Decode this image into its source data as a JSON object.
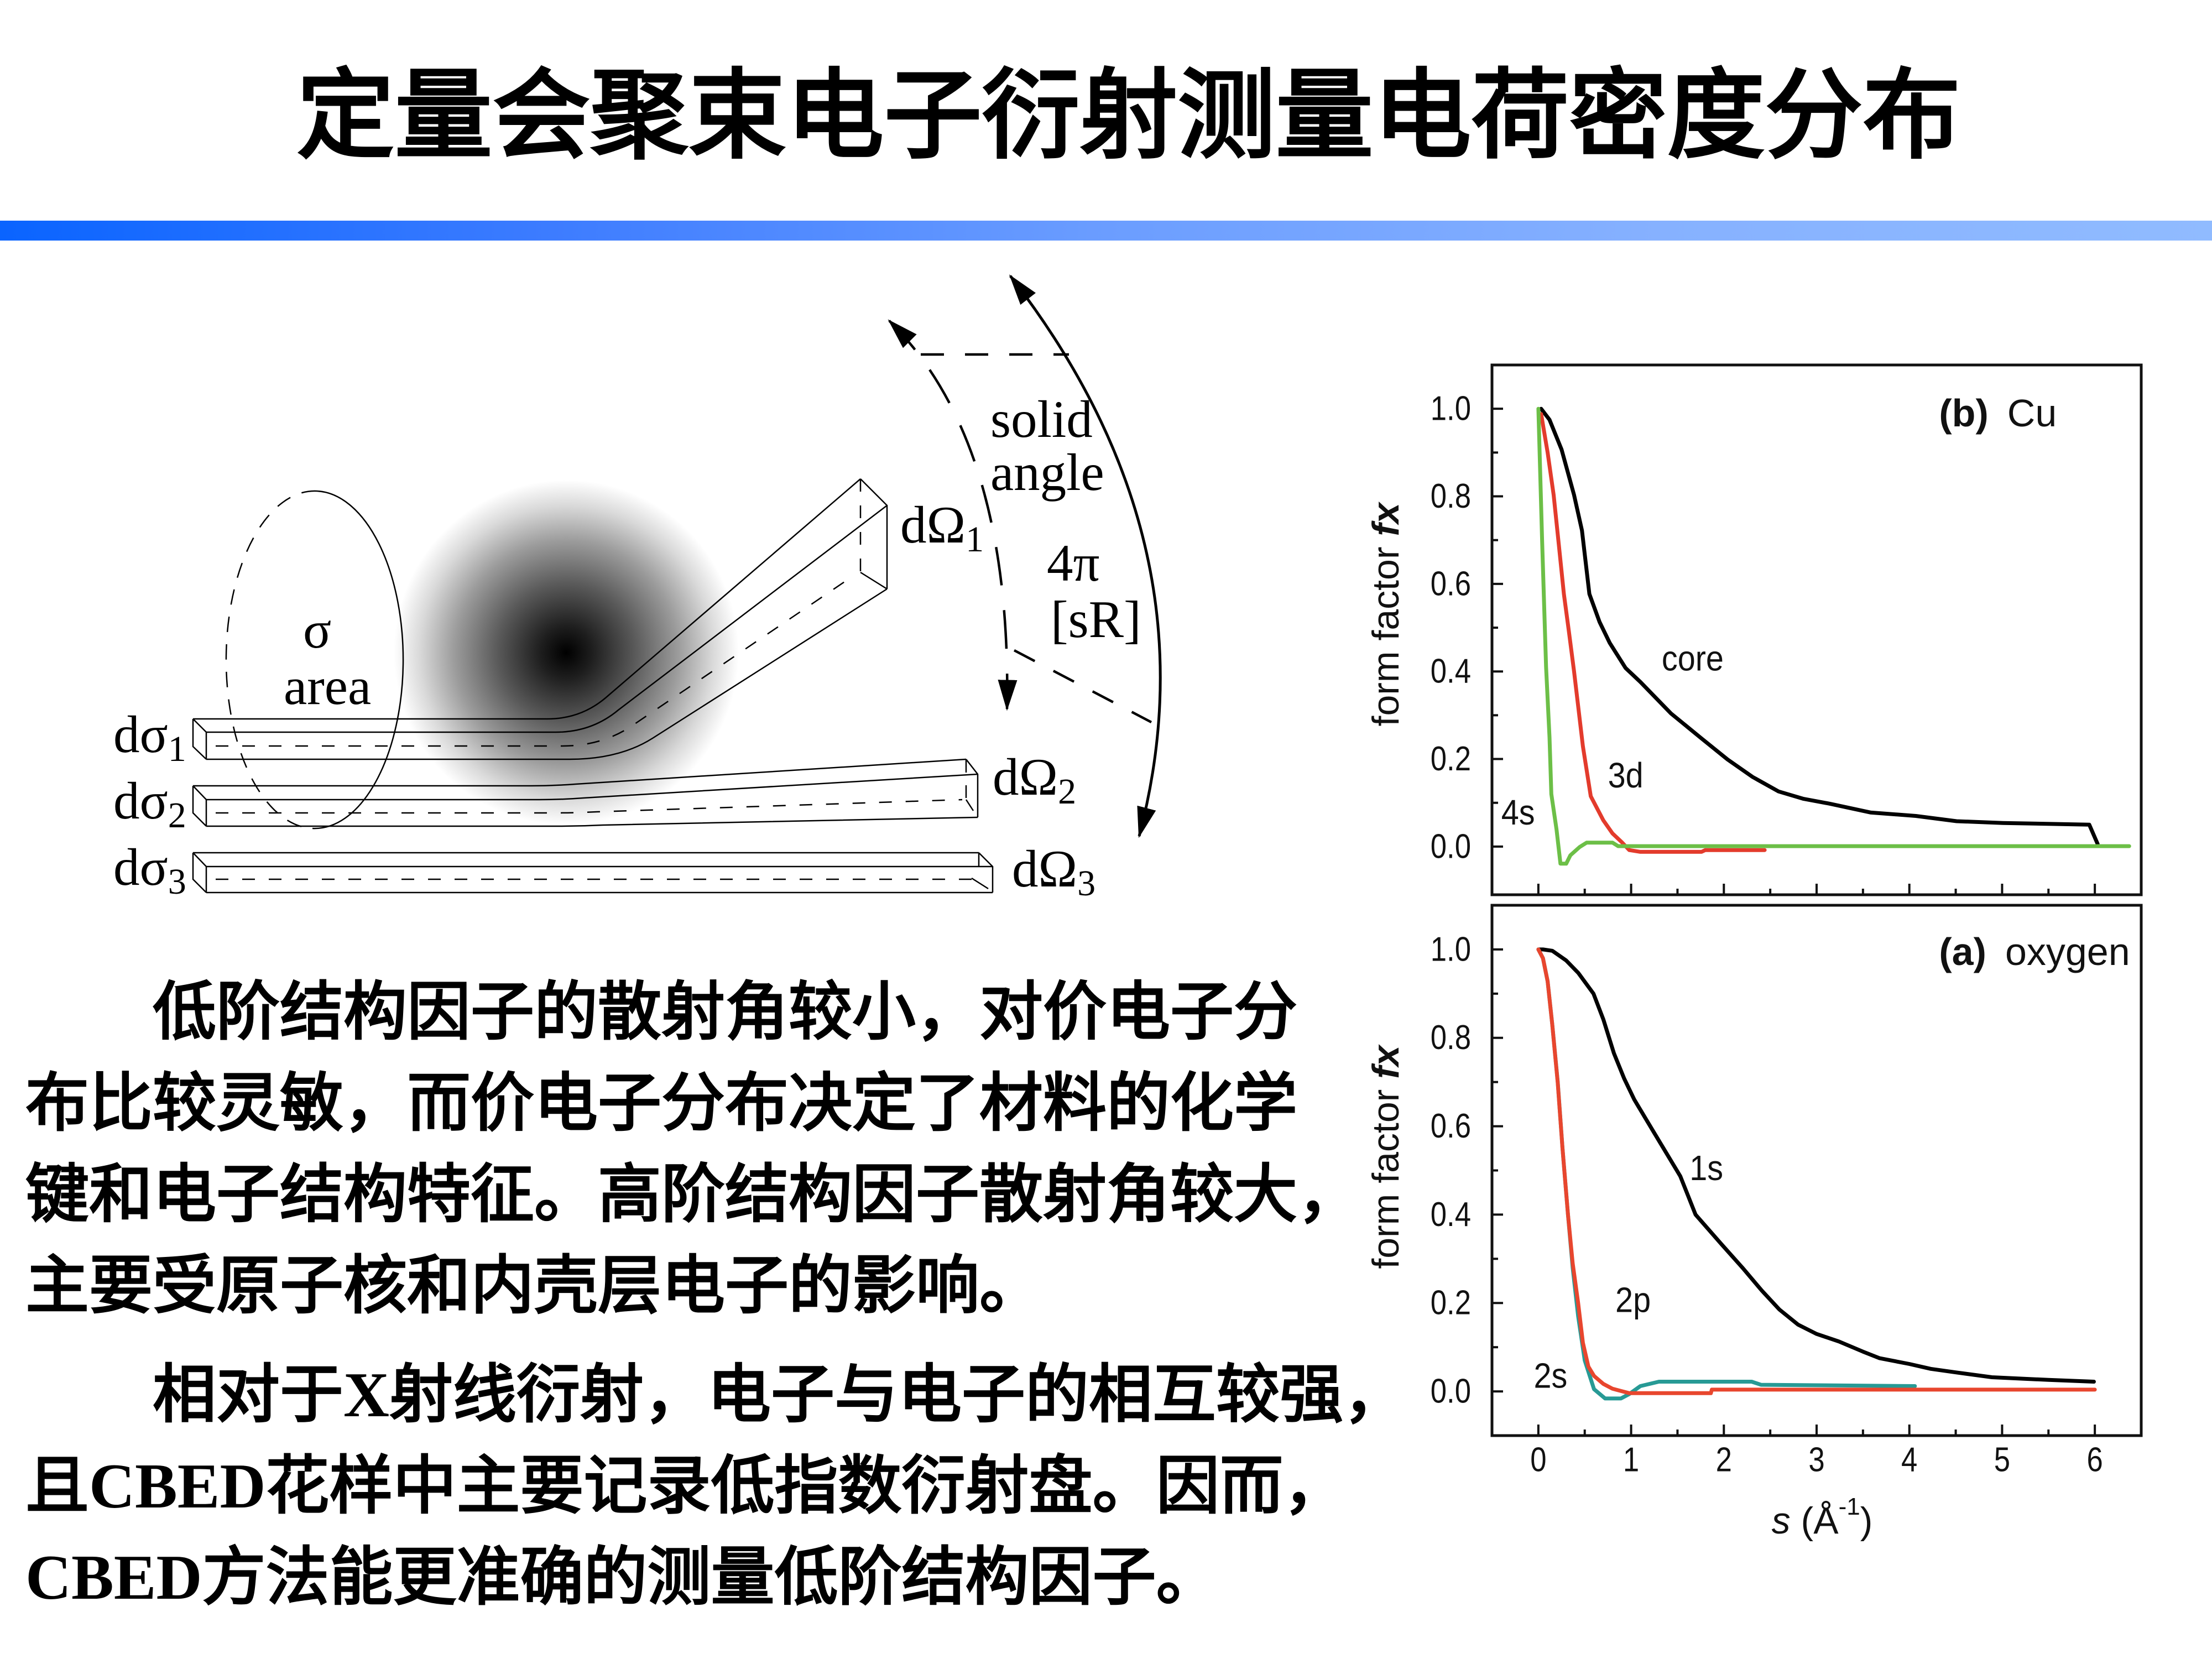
{
  "slide": {
    "title": "定量会聚束电子衍射测量电荷密度分布",
    "accent_bar": {
      "color_start": "#0a64ff",
      "color_end": "#90bbff"
    }
  },
  "diagram": {
    "sigma": "σ",
    "area": "area",
    "solid": "solid",
    "angle": "angle",
    "four_pi": "4π",
    "steradian": "[sR]",
    "incoming": [
      {
        "base": "dσ",
        "sub": "1"
      },
      {
        "base": "dσ",
        "sub": "2"
      },
      {
        "base": "dσ",
        "sub": "3"
      }
    ],
    "outgoing": [
      {
        "base": "dΩ",
        "sub": "1"
      },
      {
        "base": "dΩ",
        "sub": "2"
      },
      {
        "base": "dΩ",
        "sub": "3"
      }
    ]
  },
  "body": {
    "paragraphs": [
      {
        "lines": [
          "低阶结构因子的散射角较小，对价电子分",
          "布比较灵敏，而价电子分布决定了材料的化学",
          "键和电子结构特征。高阶结构因子散射角较大，",
          "主要受原子核和内壳层电子的影响。"
        ]
      },
      {
        "lines": [
          "相对于X射线衍射，电子与电子的相互较强，",
          "且CBED花样中主要记录低指数衍射盘。因而，",
          "CBED方法能更准确的测量低阶结构因子。"
        ]
      }
    ]
  },
  "chart_data": {
    "type": "line",
    "title": "",
    "xlabel": "s (Å-1)",
    "xlabel_parts": {
      "var": "s",
      "unit": " (Å",
      "sup": "-1",
      "close": ")"
    },
    "ylabel": "form factor fx",
    "ylabel_parts": {
      "text": "form factor ",
      "symbol": "fx"
    },
    "xticks": [
      0,
      1,
      2,
      3,
      4,
      5,
      6
    ],
    "xtick_labels": [
      "0",
      "1",
      "2",
      "3",
      "4",
      "5",
      "6"
    ],
    "x_minor_step": 0.5,
    "yticks": [
      0,
      0.2,
      0.4,
      0.6,
      0.8,
      1.0
    ],
    "ytick_labels": [
      "0.0",
      "0.2",
      "0.4",
      "0.6",
      "0.8",
      "1.0"
    ],
    "y_minor_step": 0.1,
    "grid": false,
    "legend": "none (inline curve labels)",
    "panels": [
      {
        "id": "b",
        "title_tag": "(b)",
        "title": "Cu",
        "title_pos": [
          4.32,
          0.96
        ],
        "xlim": [
          -0.5,
          6.5
        ],
        "ylim": [
          -0.11,
          1.1
        ],
        "show_xtick_labels": false,
        "series": [
          {
            "name": "core",
            "color": "#000000",
            "x": [
              0.03,
              0.12,
              0.25,
              0.385,
              0.47,
              0.55,
              0.66,
              0.77,
              0.94,
              1.1,
              1.43,
              1.76,
              2.04,
              2.31,
              2.59,
              2.86,
              3.14,
              3.58,
              4.07,
              4.51,
              5.01,
              5.94,
              6.03
            ],
            "y": [
              1.0,
              0.975,
              0.907,
              0.803,
              0.722,
              0.577,
              0.513,
              0.465,
              0.408,
              0.376,
              0.304,
              0.247,
              0.199,
              0.159,
              0.126,
              0.109,
              0.098,
              0.078,
              0.07,
              0.058,
              0.054,
              0.05,
              0.006
            ]
          },
          {
            "name": "3d",
            "color": "#e33b2c",
            "x": [
              0.03,
              0.1,
              0.165,
              0.22,
              0.275,
              0.33,
              0.385,
              0.48,
              0.565,
              0.7,
              0.8,
              0.9,
              0.98,
              1.1,
              1.76,
              1.8,
              2.44
            ],
            "y": [
              0.988,
              0.9,
              0.803,
              0.69,
              0.577,
              0.49,
              0.4,
              0.229,
              0.115,
              0.06,
              0.03,
              0.01,
              -0.008,
              -0.012,
              -0.012,
              -0.008,
              -0.008
            ]
          },
          {
            "name": "4s",
            "color": "#6cbf47",
            "x": [
              0,
              0.04,
              0.083,
              0.12,
              0.14,
              0.196,
              0.238,
              0.3,
              0.345,
              0.445,
              0.52,
              0.8,
              0.86,
              6.37
            ],
            "y": [
              1.0,
              0.7,
              0.41,
              0.25,
              0.12,
              0.039,
              -0.039,
              -0.039,
              -0.02,
              -0.001,
              0.009,
              0.009,
              0.001,
              0.001
            ]
          }
        ],
        "annotations": [
          {
            "text": "core",
            "x": 1.33,
            "y": 0.43,
            "color": "#000000"
          },
          {
            "text": "3d",
            "x": 0.75,
            "y": 0.163,
            "color": "#e0603a"
          },
          {
            "text": "4s",
            "x": -0.4,
            "y": 0.078,
            "color": "#2a9ca0"
          }
        ]
      },
      {
        "id": "a",
        "title_tag": "(a)",
        "title": "oxygen",
        "title_pos": [
          4.32,
          0.965
        ],
        "xlim": [
          -0.5,
          6.5
        ],
        "ylim": [
          -0.1,
          1.1
        ],
        "show_xtick_labels": true,
        "series": [
          {
            "name": "1s",
            "color": "#000000",
            "x": [
              0,
              0.05,
              0.15,
              0.3,
              0.43,
              0.594,
              0.7,
              0.815,
              0.925,
              1.035,
              1.255,
              1.53,
              1.695,
              1.97,
              2.2,
              2.41,
              2.6,
              2.8,
              3.0,
              3.24,
              3.5,
              3.68,
              4.0,
              4.23,
              4.5,
              4.89,
              5.5,
              5.99
            ],
            "y": [
              1.0,
              1.0,
              0.997,
              0.975,
              0.947,
              0.9,
              0.842,
              0.765,
              0.708,
              0.66,
              0.583,
              0.487,
              0.4,
              0.334,
              0.28,
              0.228,
              0.185,
              0.151,
              0.13,
              0.113,
              0.09,
              0.075,
              0.062,
              0.051,
              0.043,
              0.032,
              0.026,
              0.022
            ]
          },
          {
            "name": "2s",
            "color": "#279a95",
            "x": [
              0,
              0.05,
              0.1,
              0.15,
              0.209,
              0.26,
              0.319,
              0.37,
              0.429,
              0.5,
              0.6,
              0.72,
              0.89,
              0.98,
              1.1,
              1.3,
              2.3,
              2.4,
              4.06
            ],
            "y": [
              1.0,
              0.98,
              0.928,
              0.83,
              0.7,
              0.55,
              0.4,
              0.28,
              0.17,
              0.07,
              0.005,
              -0.016,
              -0.016,
              -0.006,
              0.012,
              0.022,
              0.022,
              0.015,
              0.012
            ]
          },
          {
            "name": "2p",
            "color": "#e8462e",
            "x": [
              0,
              0.05,
              0.1,
              0.15,
              0.209,
              0.26,
              0.319,
              0.37,
              0.429,
              0.48,
              0.539,
              0.6,
              0.7,
              0.8,
              0.98,
              1.86,
              1.87,
              6.0
            ],
            "y": [
              1.0,
              0.98,
              0.928,
              0.83,
              0.698,
              0.55,
              0.4,
              0.29,
              0.2,
              0.11,
              0.056,
              0.035,
              0.017,
              0.006,
              -0.004,
              -0.004,
              0.004,
              0.004
            ]
          }
        ],
        "annotations": [
          {
            "text": "1s",
            "x": 1.63,
            "y": 0.506,
            "color": "#000000"
          },
          {
            "text": "2p",
            "x": 0.83,
            "y": 0.207,
            "color": "#e0603a"
          },
          {
            "text": "2s",
            "x": -0.05,
            "y": 0.036,
            "color": "#2a9ca0"
          }
        ]
      }
    ]
  }
}
